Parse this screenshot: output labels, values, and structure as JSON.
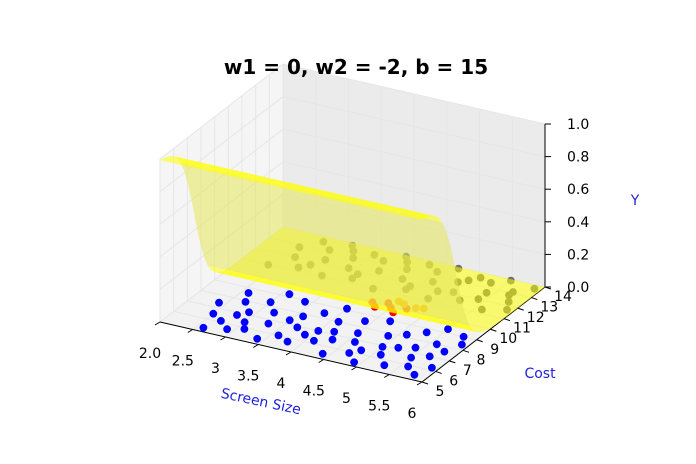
{
  "chart_data": {
    "type": "scatter",
    "title": "w1 = 0, w2 = -2, b = 15",
    "xlabel": "Screen Size",
    "ylabel": "Cost",
    "zlabel": "Y",
    "xlim": [
      2.0,
      6.0
    ],
    "ylim": [
      5,
      14
    ],
    "zlim": [
      0.0,
      1.0
    ],
    "x_ticks": [
      "2.0",
      "2.5",
      "3",
      "3.5",
      "4",
      "4.5",
      "5",
      "5.5",
      "6"
    ],
    "y_ticks": [
      "5",
      "6",
      "7",
      "8",
      "9",
      "10",
      "11",
      "12",
      "13",
      "14"
    ],
    "z_ticks": [
      "0.0",
      "0.2",
      "0.4",
      "0.6",
      "0.8",
      "1.0"
    ],
    "surface": {
      "description": "sigmoid(w1*x + w2*y + b)",
      "w1": 0,
      "w2": -2,
      "b": 15,
      "color": "#ffff00",
      "opacity": 0.55
    },
    "series": [
      {
        "color": "#0000ff",
        "points": [
          [
            2.6,
            5.3
          ],
          [
            2.9,
            5.6
          ],
          [
            3.1,
            5.9
          ],
          [
            2.7,
            6.1
          ],
          [
            3.4,
            5.4
          ],
          [
            3.6,
            6.0
          ],
          [
            3.0,
            6.4
          ],
          [
            3.8,
            5.7
          ],
          [
            4.1,
            6.2
          ],
          [
            4.4,
            5.4
          ],
          [
            4.7,
            5.9
          ],
          [
            4.9,
            5.3
          ],
          [
            5.1,
            6.3
          ],
          [
            5.3,
            5.6
          ],
          [
            5.6,
            5.9
          ],
          [
            5.8,
            5.4
          ],
          [
            4.3,
            6.6
          ],
          [
            3.7,
            6.9
          ],
          [
            2.8,
            6.8
          ],
          [
            3.3,
            6.7
          ],
          [
            4.0,
            7.0
          ],
          [
            4.6,
            6.8
          ],
          [
            5.0,
            6.9
          ],
          [
            5.5,
            6.6
          ],
          [
            5.9,
            6.2
          ],
          [
            2.5,
            6.5
          ],
          [
            4.8,
            6.3
          ],
          [
            3.9,
            6.5
          ],
          [
            5.2,
            7.1
          ],
          [
            5.7,
            7.0
          ],
          [
            4.2,
            7.2
          ],
          [
            3.5,
            7.3
          ],
          [
            2.9,
            7.2
          ],
          [
            5.4,
            7.4
          ],
          [
            4.5,
            7.5
          ],
          [
            5.8,
            7.6
          ],
          [
            3.2,
            7.6
          ],
          [
            4.9,
            7.8
          ],
          [
            2.7,
            7.9
          ],
          [
            3.6,
            7.8
          ],
          [
            5.6,
            8.0
          ],
          [
            4.1,
            8.0
          ],
          [
            5.1,
            8.2
          ],
          [
            2.4,
            7.4
          ],
          [
            3.0,
            8.3
          ],
          [
            5.9,
            8.4
          ],
          [
            4.4,
            8.5
          ],
          [
            3.8,
            8.4
          ],
          [
            5.3,
            8.7
          ],
          [
            2.6,
            8.6
          ],
          [
            4.7,
            8.9
          ],
          [
            5.8,
            9.0
          ],
          [
            3.4,
            8.9
          ],
          [
            4.0,
            9.1
          ],
          [
            5.5,
            9.3
          ],
          [
            3.1,
            9.2
          ]
        ]
      },
      {
        "color": "#ff0000",
        "points": [
          [
            4.3,
            9.7
          ],
          [
            4.5,
            9.9
          ],
          [
            4.7,
            10.1
          ],
          [
            4.2,
            10.0
          ],
          [
            4.6,
            9.6
          ],
          [
            4.4,
            10.2
          ]
        ]
      },
      {
        "color": "#ff8c00",
        "points": [
          [
            4.8,
            10.3
          ],
          [
            4.9,
            10.4
          ],
          [
            4.6,
            10.4
          ],
          [
            4.5,
            10.5
          ]
        ]
      },
      {
        "color": "#6e6e6e",
        "points": [
          [
            2.4,
            11.0
          ],
          [
            2.8,
            11.3
          ],
          [
            3.2,
            11.1
          ],
          [
            3.6,
            11.4
          ],
          [
            4.0,
            11.0
          ],
          [
            4.4,
            11.5
          ],
          [
            4.8,
            11.2
          ],
          [
            5.2,
            11.6
          ],
          [
            5.6,
            11.3
          ],
          [
            5.9,
            11.7
          ],
          [
            2.6,
            12.0
          ],
          [
            3.0,
            12.3
          ],
          [
            3.4,
            12.1
          ],
          [
            3.8,
            12.4
          ],
          [
            4.2,
            12.2
          ],
          [
            4.6,
            12.5
          ],
          [
            5.0,
            12.1
          ],
          [
            5.4,
            12.6
          ],
          [
            5.8,
            12.3
          ],
          [
            2.5,
            12.8
          ],
          [
            2.9,
            13.1
          ],
          [
            3.3,
            12.9
          ],
          [
            3.7,
            13.2
          ],
          [
            4.1,
            13.0
          ],
          [
            4.5,
            13.3
          ],
          [
            4.9,
            12.9
          ],
          [
            5.3,
            13.4
          ],
          [
            5.7,
            13.1
          ],
          [
            2.7,
            13.6
          ],
          [
            3.1,
            13.8
          ],
          [
            3.5,
            13.5
          ],
          [
            3.9,
            13.9
          ],
          [
            4.3,
            13.7
          ],
          [
            4.7,
            13.9
          ],
          [
            5.1,
            13.6
          ],
          [
            5.5,
            13.9
          ],
          [
            5.9,
            13.7
          ],
          [
            4.8,
            11.9
          ],
          [
            3.6,
            11.8
          ],
          [
            2.9,
            11.7
          ],
          [
            5.4,
            12.0
          ],
          [
            4.0,
            13.5
          ],
          [
            5.0,
            13.2
          ],
          [
            3.2,
            13.4
          ],
          [
            4.4,
            11.8
          ],
          [
            5.7,
            12.8
          ]
        ]
      }
    ]
  }
}
